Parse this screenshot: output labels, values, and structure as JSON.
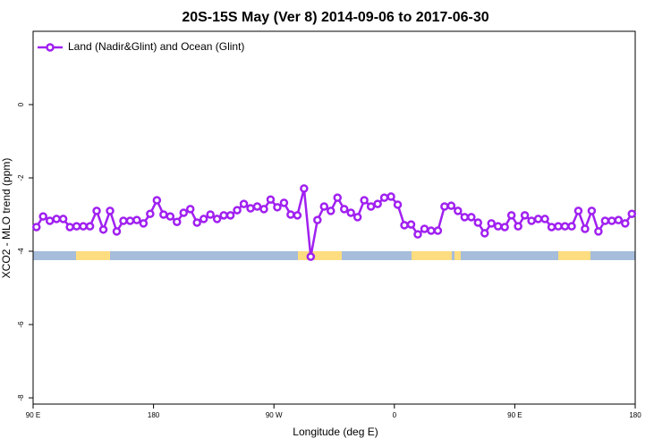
{
  "chart_data": {
    "type": "line",
    "title": "20S-15S May (Ver 8)   2014-09-06 to 2017-06-30",
    "x_label": "Longitude (deg E)",
    "y_label": "XCO2 - MLO trend (ppm)",
    "x": [
      92.5,
      97.5,
      102.5,
      107.5,
      112.5,
      117.5,
      122.5,
      127.5,
      132.5,
      137.5,
      142.5,
      147.5,
      152.5,
      157.5,
      162.5,
      167.5,
      172.5,
      177.5,
      182.5,
      187.5,
      192.5,
      197.5,
      202.5,
      207.5,
      212.5,
      217.5,
      222.5,
      227.5,
      232.5,
      237.5,
      242.5,
      247.5,
      252.5,
      257.5,
      262.5,
      267.5,
      272.5,
      277.5,
      282.5,
      287.5,
      292.5,
      297.5,
      302.5,
      307.5,
      312.5,
      317.5,
      322.5,
      327.5,
      332.5,
      337.5,
      342.5,
      347.5,
      352.5,
      357.5,
      362.5,
      367.5,
      372.5,
      377.5,
      382.5,
      387.5,
      392.5,
      397.5,
      402.5,
      407.5,
      412.5,
      417.5,
      422.5,
      427.5,
      432.5,
      437.5,
      442.5,
      447.5,
      452.5,
      457.5,
      462.5,
      467.5,
      472.5,
      477.5,
      482.5,
      487.5,
      492.5,
      497.5,
      502.5,
      507.5,
      512.5,
      517.5,
      522.5,
      527.5,
      532.5,
      537.5
    ],
    "series": [
      {
        "name": "Land (Nadir&Glint) and Ocean (Glint)",
        "color": "#a020f0",
        "values": [
          -3.34,
          -3.05,
          -3.17,
          -3.12,
          -3.12,
          -3.34,
          -3.32,
          -3.32,
          -3.32,
          -2.9,
          -3.41,
          -2.9,
          -3.46,
          -3.17,
          -3.17,
          -3.15,
          -3.24,
          -2.98,
          -2.61,
          -3.0,
          -3.05,
          -3.2,
          -2.95,
          -2.85,
          -3.22,
          -3.12,
          -3.0,
          -3.12,
          -3.02,
          -3.02,
          -2.88,
          -2.71,
          -2.83,
          -2.78,
          -2.85,
          -2.59,
          -2.8,
          -2.68,
          -3.0,
          -3.02,
          -2.29,
          -4.15,
          -3.15,
          -2.78,
          -2.9,
          -2.54,
          -2.85,
          -2.95,
          -3.07,
          -2.61,
          -2.78,
          -2.71,
          -2.54,
          -2.51,
          -2.73,
          -3.29,
          -3.27,
          -3.54,
          -3.39,
          -3.44,
          -3.44,
          -2.78,
          -2.76,
          -2.9,
          -3.07,
          -3.07,
          -3.22,
          -3.51,
          -3.24,
          -3.32,
          -3.34,
          -3.02,
          -3.32,
          -3.02,
          -3.17,
          -3.12,
          -3.12,
          -3.34,
          -3.32,
          -3.32,
          -3.32,
          -2.9,
          -3.39,
          -2.9,
          -3.46,
          -3.17,
          -3.17,
          -3.15,
          -3.24,
          -2.98
        ]
      }
    ],
    "xlim": [
      90,
      540
    ],
    "xticks": [
      {
        "value": 90,
        "label": "90 E"
      },
      180,
      {
        "value": 270,
        "label": "90 W"
      },
      {
        "value": 360,
        "label": "0"
      },
      {
        "value": 450,
        "label": "90 E"
      },
      {
        "value": 540,
        "label": "180"
      }
    ],
    "ylim": [
      -8.17,
      2
    ],
    "yticks": [
      0,
      -2,
      -4,
      -6,
      -8
    ],
    "legend": "top-left"
  }
}
